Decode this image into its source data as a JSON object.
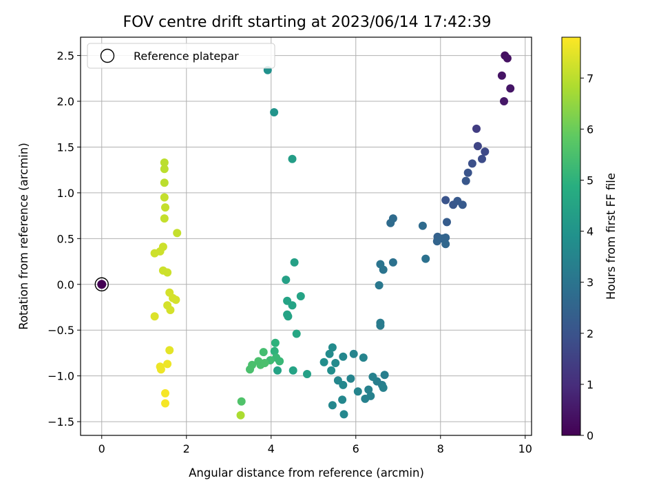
{
  "chart_data": {
    "type": "scatter",
    "title": "FOV centre drift starting at 2023/06/14 17:42:39",
    "xlabel": "Angular distance from reference (arcmin)",
    "ylabel": "Rotation from reference (arcmin)",
    "xlim": [
      -0.5,
      10.15
    ],
    "ylim": [
      -1.65,
      2.7
    ],
    "xticks": [
      0,
      2,
      4,
      6,
      8,
      10
    ],
    "yticks": [
      -1.5,
      -1.0,
      -0.5,
      0.0,
      0.5,
      1.0,
      1.5,
      2.0,
      2.5
    ],
    "ytick_labels": [
      "−1.5",
      "−1.0",
      "−0.5",
      "0.0",
      "0.5",
      "1.0",
      "1.5",
      "2.0",
      "2.5"
    ],
    "grid": true,
    "legend": {
      "placement": "top-left",
      "entries": [
        "Reference platepar"
      ]
    },
    "reference_point": {
      "x": 0,
      "y": 0,
      "label": "Reference platepar"
    },
    "colorbar": {
      "label": "Hours from first FF file",
      "range": [
        0,
        7.8
      ],
      "ticks": [
        0,
        1,
        2,
        3,
        4,
        5,
        6,
        7
      ],
      "colormap": "viridis"
    },
    "points": [
      [
        9.52,
        2.5,
        0.3
      ],
      [
        9.58,
        2.47,
        0.35
      ],
      [
        9.45,
        2.28,
        0.4
      ],
      [
        9.65,
        2.14,
        0.45
      ],
      [
        9.5,
        2.0,
        0.5
      ],
      [
        8.85,
        1.7,
        1.4
      ],
      [
        8.88,
        1.51,
        1.6
      ],
      [
        9.05,
        1.45,
        1.7
      ],
      [
        8.98,
        1.37,
        1.8
      ],
      [
        8.75,
        1.32,
        1.9
      ],
      [
        8.65,
        1.22,
        2.0
      ],
      [
        8.6,
        1.13,
        2.1
      ],
      [
        8.12,
        0.92,
        2.0
      ],
      [
        8.3,
        0.87,
        2.1
      ],
      [
        8.4,
        0.91,
        2.15
      ],
      [
        8.52,
        0.87,
        2.2
      ],
      [
        8.15,
        0.68,
        2.25
      ],
      [
        7.93,
        0.52,
        2.4
      ],
      [
        8.05,
        0.5,
        2.5
      ],
      [
        7.92,
        0.47,
        2.5
      ],
      [
        8.12,
        0.51,
        2.5
      ],
      [
        8.12,
        0.44,
        2.6
      ],
      [
        7.58,
        0.64,
        2.7
      ],
      [
        6.82,
        0.67,
        2.7
      ],
      [
        6.88,
        0.72,
        2.7
      ],
      [
        7.65,
        0.28,
        2.9
      ],
      [
        6.88,
        0.24,
        2.9
      ],
      [
        6.58,
        0.22,
        3.0
      ],
      [
        6.65,
        0.16,
        3.0
      ],
      [
        6.55,
        -0.01,
        3.1
      ],
      [
        6.58,
        -0.42,
        3.2
      ],
      [
        6.58,
        -0.45,
        3.2
      ],
      [
        6.68,
        -0.99,
        3.3
      ],
      [
        6.5,
        -1.06,
        3.3
      ],
      [
        6.62,
        -1.1,
        3.3
      ],
      [
        6.65,
        -1.13,
        3.4
      ],
      [
        6.4,
        -1.01,
        3.4
      ],
      [
        6.3,
        -1.15,
        3.4
      ],
      [
        6.35,
        -1.22,
        3.4
      ],
      [
        6.22,
        -1.25,
        3.4
      ],
      [
        6.18,
        -0.8,
        3.5
      ],
      [
        5.95,
        -0.76,
        3.5
      ],
      [
        5.88,
        -1.03,
        3.5
      ],
      [
        6.05,
        -1.17,
        3.5
      ],
      [
        5.7,
        -0.79,
        3.6
      ],
      [
        5.52,
        -0.86,
        3.7
      ],
      [
        5.58,
        -1.05,
        3.6
      ],
      [
        5.7,
        -1.1,
        3.6
      ],
      [
        5.68,
        -1.26,
        3.6
      ],
      [
        5.45,
        -1.32,
        3.6
      ],
      [
        5.72,
        -1.42,
        3.6
      ],
      [
        5.45,
        -0.69,
        3.7
      ],
      [
        5.38,
        -0.76,
        3.7
      ],
      [
        5.42,
        -0.94,
        3.8
      ],
      [
        5.25,
        -0.85,
        3.8
      ],
      [
        4.07,
        1.88,
        4.0
      ],
      [
        4.5,
        1.37,
        4.3
      ],
      [
        3.92,
        2.34,
        3.9
      ],
      [
        4.55,
        0.24,
        4.4
      ],
      [
        4.35,
        0.05,
        4.4
      ],
      [
        4.38,
        -0.18,
        4.5
      ],
      [
        4.5,
        -0.23,
        4.5
      ],
      [
        4.7,
        -0.13,
        4.5
      ],
      [
        4.38,
        -0.33,
        4.5
      ],
      [
        4.4,
        -0.35,
        4.5
      ],
      [
        4.6,
        -0.54,
        4.6
      ],
      [
        4.1,
        -0.64,
        5.0
      ],
      [
        4.08,
        -0.73,
        5.0
      ],
      [
        4.12,
        -0.8,
        5.2
      ],
      [
        4.2,
        -0.84,
        5.2
      ],
      [
        3.98,
        -0.83,
        5.3
      ],
      [
        3.82,
        -0.74,
        5.4
      ],
      [
        3.75,
        -0.88,
        5.5
      ],
      [
        3.7,
        -0.84,
        5.5
      ],
      [
        3.85,
        -0.86,
        5.5
      ],
      [
        3.55,
        -0.88,
        5.5
      ],
      [
        3.5,
        -0.93,
        5.5
      ],
      [
        4.15,
        -0.94,
        4.5
      ],
      [
        4.52,
        -0.94,
        4.5
      ],
      [
        4.85,
        -0.98,
        4.4
      ],
      [
        3.3,
        -1.28,
        5.6
      ],
      [
        3.28,
        -1.43,
        6.8
      ],
      [
        1.48,
        1.33,
        7.0
      ],
      [
        1.48,
        1.26,
        7.0
      ],
      [
        1.48,
        1.11,
        7.0
      ],
      [
        1.48,
        0.95,
        7.1
      ],
      [
        1.5,
        0.84,
        7.1
      ],
      [
        1.48,
        0.72,
        7.1
      ],
      [
        1.78,
        0.56,
        7.1
      ],
      [
        1.45,
        0.41,
        7.2
      ],
      [
        1.25,
        0.34,
        7.2
      ],
      [
        1.38,
        0.36,
        7.2
      ],
      [
        1.45,
        0.15,
        7.2
      ],
      [
        1.55,
        0.13,
        7.2
      ],
      [
        1.6,
        -0.09,
        7.3
      ],
      [
        1.68,
        -0.15,
        7.3
      ],
      [
        1.75,
        -0.17,
        7.3
      ],
      [
        1.55,
        -0.23,
        7.3
      ],
      [
        1.62,
        -0.28,
        7.3
      ],
      [
        1.25,
        -0.35,
        7.4
      ],
      [
        1.6,
        -0.72,
        7.5
      ],
      [
        1.55,
        -0.87,
        7.6
      ],
      [
        1.38,
        -0.9,
        7.6
      ],
      [
        1.4,
        -0.93,
        7.6
      ],
      [
        1.5,
        -1.19,
        7.7
      ],
      [
        1.5,
        -1.3,
        7.7
      ]
    ]
  }
}
